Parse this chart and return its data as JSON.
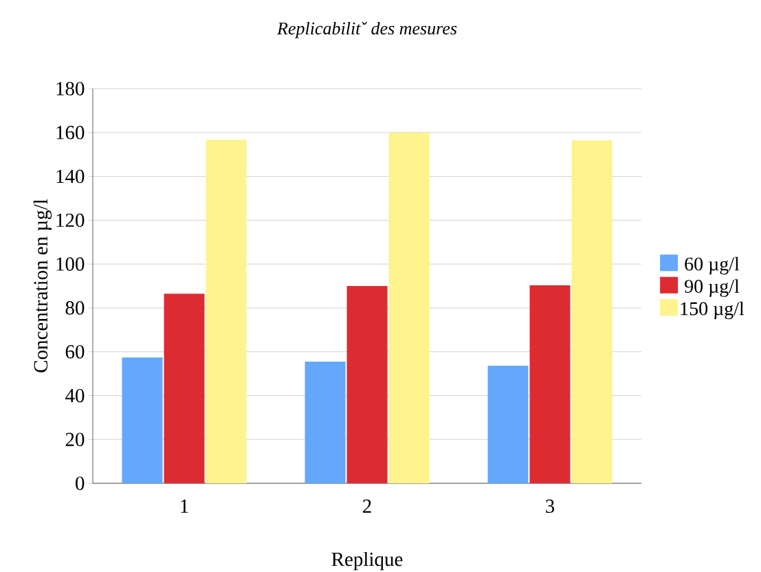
{
  "chart_data": {
    "type": "bar",
    "title": "Replicabilitˇ des mesures",
    "xlabel": "Replique",
    "ylabel": "Concentration en µg/l",
    "categories": [
      "1",
      "2",
      "3"
    ],
    "series": [
      {
        "name": "60 µg/l",
        "color": "#63a8fc",
        "values": [
          57.4,
          55.5,
          53.6
        ]
      },
      {
        "name": "90 µg/l",
        "color": "#dc2c32",
        "values": [
          86.5,
          90.0,
          90.3
        ]
      },
      {
        "name": "150 µg/l",
        "color": "#fef38c",
        "values": [
          156.7,
          159.9,
          156.4
        ]
      }
    ],
    "ylim": [
      0,
      180
    ],
    "yticks": [
      0,
      20,
      40,
      60,
      80,
      100,
      120,
      140,
      160,
      180
    ],
    "grid": "y",
    "legend": "right"
  }
}
